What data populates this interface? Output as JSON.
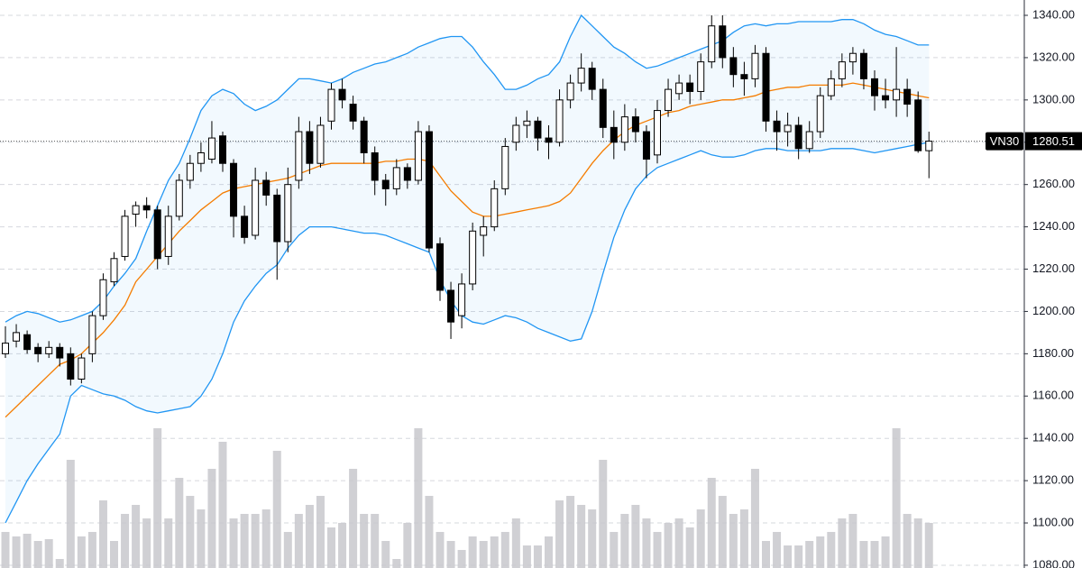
{
  "chart_data": {
    "type": "candlestick",
    "symbol": "VN30",
    "open": [
      1180,
      1186,
      1189,
      1183,
      1180,
      1183,
      1180,
      1168,
      1180,
      1198,
      1214,
      1226,
      1246,
      1250,
      1248,
      1226,
      1245,
      1262,
      1270,
      1272,
      1283,
      1270,
      1245,
      1236,
      1262,
      1255,
      1233,
      1262,
      1285,
      1270,
      1290,
      1305,
      1298,
      1290,
      1275,
      1262,
      1258,
      1268,
      1262,
      1285,
      1232,
      1210,
      1198,
      1213,
      1236,
      1240,
      1258,
      1280,
      1288,
      1290,
      1282,
      1280,
      1300,
      1308,
      1315,
      1305,
      1287,
      1280,
      1292,
      1285,
      1274,
      1295,
      1303,
      1308,
      1304,
      1318,
      1335,
      1320,
      1312,
      1310,
      1322,
      1290,
      1285,
      1288,
      1277,
      1285,
      1302,
      1310,
      1318,
      1322,
      1310,
      1302,
      1300,
      1305,
      1300,
      1276
    ],
    "high": [
      1193,
      1194,
      1191,
      1185,
      1186,
      1185,
      1183,
      1180,
      1200,
      1218,
      1228,
      1248,
      1252,
      1254,
      1250,
      1250,
      1265,
      1274,
      1280,
      1290,
      1285,
      1272,
      1250,
      1268,
      1266,
      1258,
      1268,
      1292,
      1290,
      1292,
      1308,
      1310,
      1302,
      1292,
      1278,
      1265,
      1272,
      1270,
      1290,
      1288,
      1235,
      1214,
      1218,
      1242,
      1245,
      1262,
      1282,
      1292,
      1295,
      1292,
      1288,
      1305,
      1312,
      1322,
      1318,
      1310,
      1295,
      1298,
      1296,
      1288,
      1300,
      1310,
      1312,
      1312,
      1322,
      1340,
      1340,
      1325,
      1318,
      1326,
      1325,
      1295,
      1294,
      1292,
      1290,
      1306,
      1314,
      1322,
      1325,
      1324,
      1314,
      1310,
      1325,
      1310,
      1304,
      1285
    ],
    "low": [
      1178,
      1183,
      1180,
      1176,
      1178,
      1174,
      1165,
      1166,
      1176,
      1196,
      1212,
      1224,
      1240,
      1244,
      1220,
      1222,
      1243,
      1258,
      1266,
      1270,
      1266,
      1235,
      1232,
      1234,
      1250,
      1215,
      1228,
      1258,
      1265,
      1268,
      1286,
      1296,
      1286,
      1270,
      1255,
      1250,
      1255,
      1258,
      1260,
      1228,
      1205,
      1187,
      1192,
      1210,
      1226,
      1238,
      1255,
      1276,
      1282,
      1276,
      1272,
      1278,
      1296,
      1304,
      1300,
      1282,
      1272,
      1276,
      1280,
      1263,
      1270,
      1292,
      1300,
      1298,
      1300,
      1315,
      1315,
      1306,
      1302,
      1306,
      1285,
      1276,
      1278,
      1272,
      1275,
      1282,
      1300,
      1306,
      1312,
      1305,
      1295,
      1296,
      1292,
      1292,
      1275,
      1263
    ],
    "close": [
      1185,
      1190,
      1182,
      1180,
      1183,
      1178,
      1168,
      1178,
      1198,
      1215,
      1225,
      1245,
      1250,
      1248,
      1225,
      1245,
      1262,
      1270,
      1275,
      1282,
      1270,
      1245,
      1235,
      1262,
      1255,
      1233,
      1260,
      1285,
      1270,
      1288,
      1305,
      1300,
      1290,
      1275,
      1262,
      1258,
      1268,
      1262,
      1285,
      1230,
      1210,
      1195,
      1213,
      1238,
      1240,
      1258,
      1278,
      1288,
      1290,
      1282,
      1280,
      1300,
      1308,
      1315,
      1305,
      1287,
      1280,
      1292,
      1285,
      1272,
      1295,
      1305,
      1308,
      1304,
      1318,
      1335,
      1320,
      1312,
      1310,
      1322,
      1290,
      1285,
      1288,
      1277,
      1285,
      1302,
      1310,
      1318,
      1322,
      1310,
      1302,
      1300,
      1305,
      1298,
      1276,
      1280.51
    ],
    "volume": [
      40,
      35,
      38,
      30,
      32,
      10,
      120,
      35,
      40,
      75,
      30,
      60,
      70,
      55,
      155,
      55,
      100,
      80,
      65,
      110,
      140,
      55,
      60,
      60,
      65,
      130,
      40,
      60,
      70,
      80,
      45,
      50,
      110,
      60,
      60,
      30,
      10,
      50,
      155,
      80,
      40,
      30,
      20,
      35,
      30,
      35,
      40,
      55,
      25,
      25,
      35,
      75,
      80,
      70,
      65,
      120,
      40,
      60,
      70,
      55,
      40,
      50,
      55,
      45,
      65,
      100,
      80,
      60,
      65,
      110,
      30,
      40,
      25,
      25,
      30,
      35,
      40,
      55,
      60,
      30,
      30,
      35,
      155,
      60,
      55,
      50
    ],
    "bands": {
      "upper": [
        1195,
        1198,
        1200,
        1199,
        1197,
        1195,
        1196,
        1198,
        1200,
        1205,
        1212,
        1218,
        1225,
        1238,
        1250,
        1262,
        1270,
        1282,
        1295,
        1302,
        1305,
        1303,
        1298,
        1295,
        1297,
        1300,
        1305,
        1310,
        1310,
        1309,
        1308,
        1310,
        1313,
        1315,
        1317,
        1318,
        1320,
        1322,
        1325,
        1327,
        1329,
        1330,
        1330,
        1325,
        1318,
        1312,
        1305,
        1305,
        1307,
        1310,
        1312,
        1318,
        1330,
        1340,
        1335,
        1330,
        1325,
        1322,
        1318,
        1315,
        1316,
        1318,
        1320,
        1322,
        1324,
        1326,
        1328,
        1332,
        1335,
        1336,
        1335,
        1336,
        1336,
        1337,
        1337,
        1337,
        1337,
        1338,
        1338,
        1336,
        1333,
        1331,
        1330,
        1328,
        1326,
        1326
      ],
      "basis": [
        1150,
        1155,
        1160,
        1165,
        1170,
        1175,
        1177,
        1180,
        1185,
        1190,
        1196,
        1203,
        1214,
        1220,
        1226,
        1232,
        1238,
        1243,
        1248,
        1252,
        1256,
        1258,
        1259,
        1260,
        1261,
        1262,
        1263,
        1265,
        1267,
        1269,
        1270,
        1270,
        1270,
        1270,
        1270,
        1271,
        1271,
        1272,
        1272,
        1271,
        1264,
        1257,
        1252,
        1247,
        1245,
        1245,
        1246,
        1247,
        1248,
        1249,
        1250,
        1252,
        1256,
        1263,
        1270,
        1276,
        1281,
        1285,
        1288,
        1290,
        1292,
        1294,
        1295,
        1297,
        1298,
        1299,
        1300,
        1300,
        1301,
        1302,
        1304,
        1305,
        1306,
        1306,
        1307,
        1307,
        1307,
        1307,
        1308,
        1307,
        1306,
        1305,
        1304,
        1303,
        1302,
        1301
      ],
      "lower": [
        1100,
        1110,
        1120,
        1128,
        1135,
        1142,
        1160,
        1165,
        1163,
        1161,
        1160,
        1158,
        1155,
        1153,
        1152,
        1153,
        1154,
        1155,
        1160,
        1168,
        1180,
        1195,
        1205,
        1212,
        1218,
        1222,
        1230,
        1236,
        1240,
        1240,
        1240,
        1239,
        1238,
        1237,
        1237,
        1236,
        1234,
        1232,
        1230,
        1228,
        1215,
        1205,
        1198,
        1195,
        1194,
        1196,
        1198,
        1197,
        1195,
        1192,
        1190,
        1188,
        1186,
        1187,
        1200,
        1218,
        1235,
        1248,
        1258,
        1264,
        1268,
        1270,
        1272,
        1274,
        1276,
        1274,
        1273,
        1273,
        1274,
        1276,
        1277,
        1277,
        1276,
        1276,
        1276,
        1276,
        1277,
        1277,
        1277,
        1276,
        1275,
        1276,
        1277,
        1278,
        1279,
        1280
      ],
      "band_color": "#2196f3",
      "fill_color": "#2196f3",
      "basis_color": "#f57c00"
    },
    "up_color": "#ffffff",
    "down_color": "#000000",
    "volume_color": "#c8c8cc",
    "ylim": [
      1078.7,
      1347.25
    ],
    "volume_ylim": [
      0,
      630
    ],
    "yticks": [
      {
        "value": 1080,
        "label": "1080.00"
      },
      {
        "value": 1100,
        "label": "1100.00"
      },
      {
        "value": 1120,
        "label": "1120.00"
      },
      {
        "value": 1140,
        "label": "1140.00"
      },
      {
        "value": 1160,
        "label": "1160.00"
      },
      {
        "value": 1180,
        "label": "1180.00"
      },
      {
        "value": 1200,
        "label": "1200.00"
      },
      {
        "value": 1220,
        "label": "1220.00"
      },
      {
        "value": 1240,
        "label": "1240.00"
      },
      {
        "value": 1260,
        "label": "1260.00"
      },
      {
        "value": 1280,
        "label": "1280.00"
      },
      {
        "value": 1300,
        "label": "1300.00"
      },
      {
        "value": 1320,
        "label": "1320.00"
      },
      {
        "value": 1340,
        "label": "1340.00"
      }
    ],
    "grid": true
  }
}
